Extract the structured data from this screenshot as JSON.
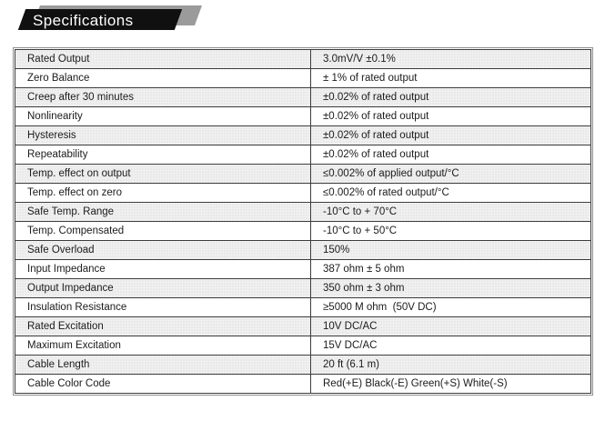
{
  "banner": {
    "title": "Specifications"
  },
  "colors": {
    "banner_bg": "#101010",
    "banner_shadow": "#9b9b9b",
    "banner_text": "#ffffff",
    "table_border": "#3c3c3c",
    "row_shade": "#f1f1f1",
    "text": "#1b1b1b"
  },
  "table": {
    "rows": [
      {
        "parameter": "Rated Output",
        "value": "3.0mV/V ±0.1%"
      },
      {
        "parameter": "Zero Balance",
        "value": "± 1% of rated output"
      },
      {
        "parameter": "Creep after 30 minutes",
        "value": "±0.02% of rated output"
      },
      {
        "parameter": "Nonlinearity",
        "value": "±0.02% of rated output"
      },
      {
        "parameter": "Hysteresis",
        "value": "±0.02% of rated output"
      },
      {
        "parameter": "Repeatability",
        "value": "±0.02% of rated output"
      },
      {
        "parameter": "Temp. effect on output",
        "value": "≤0.002% of applied output/°C"
      },
      {
        "parameter": "Temp. effect on zero",
        "value": "≤0.002% of rated output/°C"
      },
      {
        "parameter": "Safe Temp. Range",
        "value": "-10°C to + 70°C"
      },
      {
        "parameter": "Temp. Compensated",
        "value": "-10°C to + 50°C"
      },
      {
        "parameter": "Safe Overload",
        "value": "150%"
      },
      {
        "parameter": "Input Impedance",
        "value": "387 ohm ± 5 ohm"
      },
      {
        "parameter": "Output Impedance",
        "value": "350 ohm ± 3 ohm"
      },
      {
        "parameter": "Insulation Resistance",
        "value": "≥5000 M ohm  (50V DC)"
      },
      {
        "parameter": "Rated Excitation",
        "value": "10V DC/AC"
      },
      {
        "parameter": "Maximum Excitation",
        "value": "15V DC/AC"
      },
      {
        "parameter": "Cable Length",
        "value": "20 ft (6.1 m)"
      },
      {
        "parameter": "Cable Color Code",
        "value": "Red(+E) Black(-E) Green(+S) White(-S)"
      }
    ]
  }
}
